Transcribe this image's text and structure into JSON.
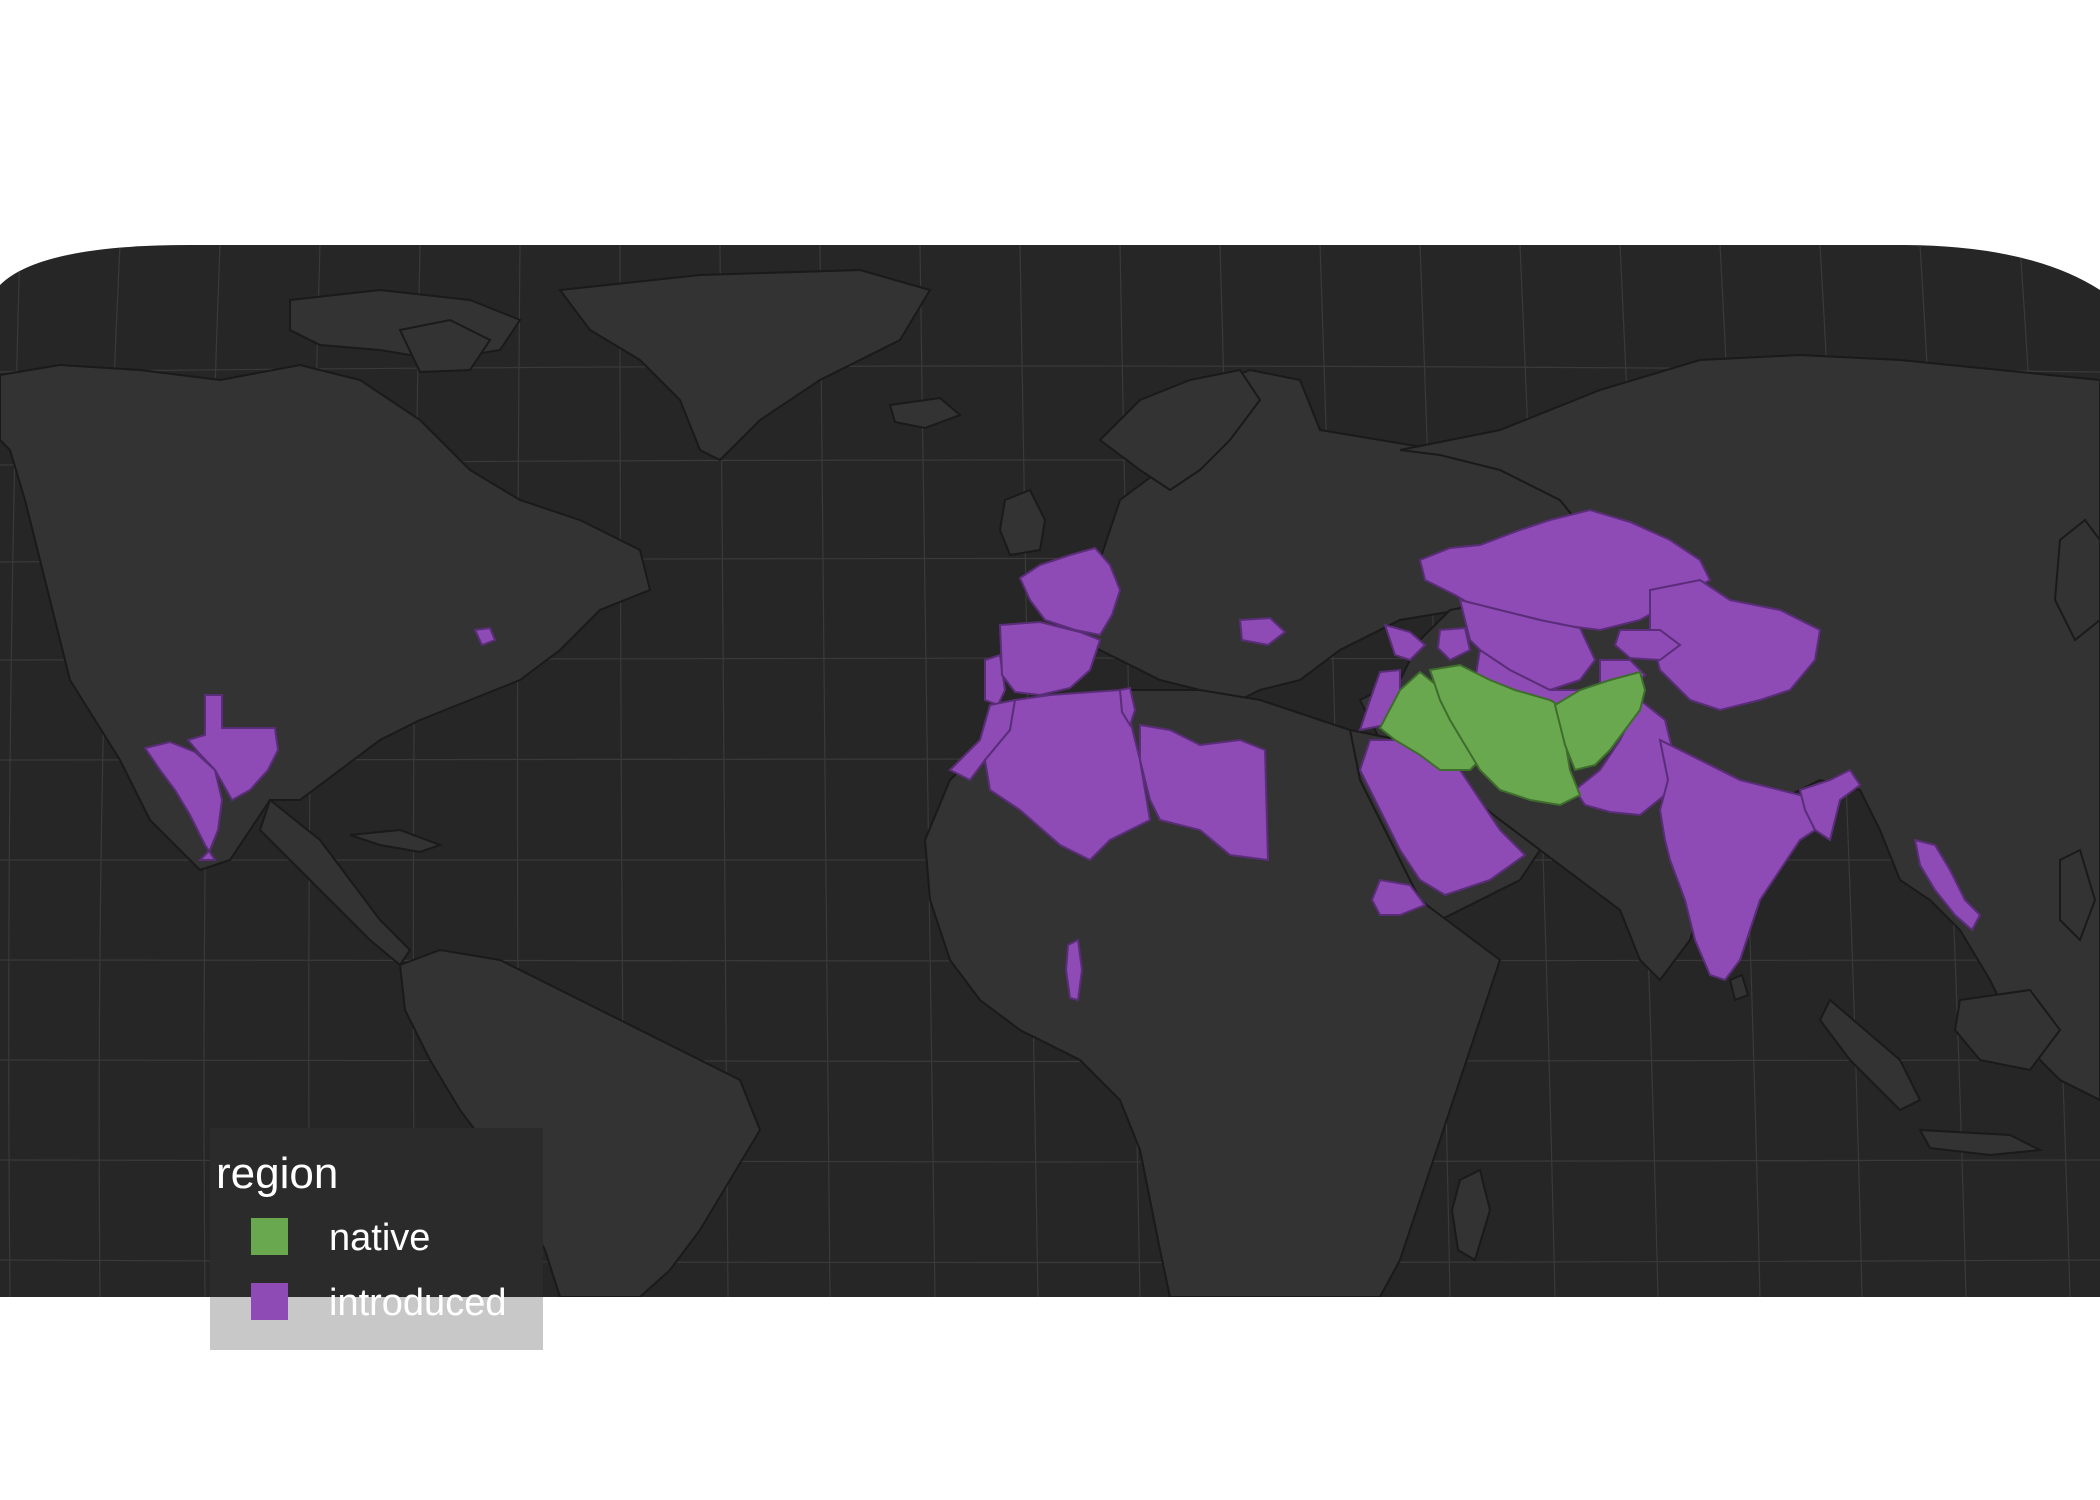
{
  "colors": {
    "background": "#ffffff",
    "ocean": "#262626",
    "land": "#333333",
    "border": "#1a1a1a",
    "graticule": "#3a3a3a",
    "native": "#6aa84f",
    "introduced": "#8e4ab5",
    "legend_bg": "#c8c8c8"
  },
  "legend": {
    "title": "region",
    "items": [
      {
        "label": "native",
        "color": "#6aa84f"
      },
      {
        "label": "introduced",
        "color": "#8e4ab5"
      }
    ]
  },
  "regions": {
    "native": [
      "Iraq",
      "Iran",
      "Afghanistan"
    ],
    "introduced": [
      "Texas, USA",
      "Mexico",
      "New York, USA",
      "Portugal",
      "Spain",
      "France",
      "Morocco",
      "Algeria",
      "Tunisia",
      "Libya",
      "Togo",
      "Bulgaria",
      "Turkey",
      "Syria",
      "Saudi Arabia",
      "Yemen",
      "Kazakhstan",
      "Uzbekistan",
      "Turkmenistan",
      "Azerbaijan",
      "Kyrgyzstan",
      "Tajikistan",
      "Pakistan",
      "India",
      "Bangladesh",
      "Laos",
      "Xinjiang, China"
    ]
  }
}
